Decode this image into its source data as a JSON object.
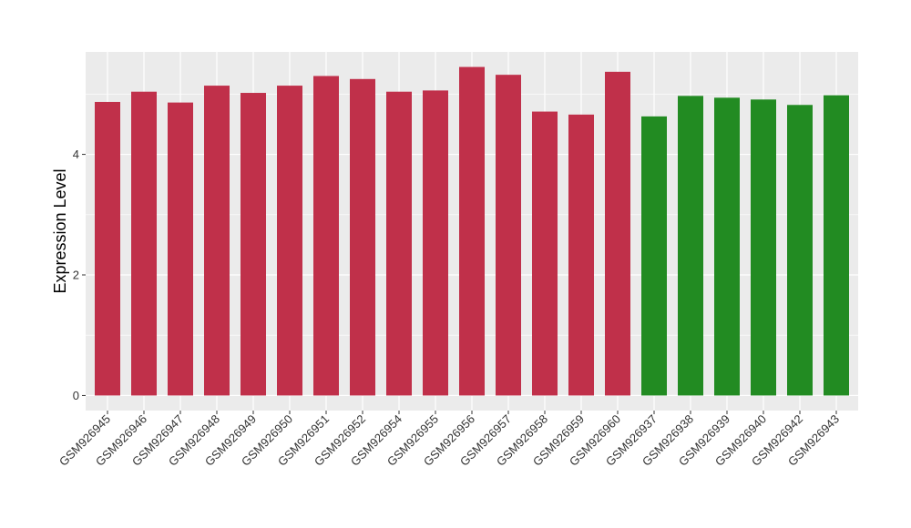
{
  "colors": {
    "panel_background": "#EBEBEB",
    "grid_major": "#FFFFFF",
    "group_a": "#C0304A",
    "group_b": "#228B22",
    "tick_text": "#333333"
  },
  "chart_data": {
    "type": "bar",
    "title": "",
    "xlabel": "",
    "ylabel": "Expression Level",
    "ylim": [
      -0.25,
      5.7
    ],
    "yticks": [
      0,
      2,
      4
    ],
    "grid": true,
    "legend": "none",
    "categories": [
      "GSM926945",
      "GSM926946",
      "GSM926947",
      "GSM926948",
      "GSM926949",
      "GSM926950",
      "GSM926951",
      "GSM926952",
      "GSM926954",
      "GSM926955",
      "GSM926956",
      "GSM926957",
      "GSM926958",
      "GSM926959",
      "GSM926960",
      "GSM926937",
      "GSM926938",
      "GSM926939",
      "GSM926940",
      "GSM926942",
      "GSM926943"
    ],
    "values": [
      4.87,
      5.04,
      4.86,
      5.14,
      5.02,
      5.14,
      5.3,
      5.25,
      5.04,
      5.06,
      5.45,
      5.32,
      4.71,
      4.66,
      5.37,
      4.63,
      4.97,
      4.94,
      4.91,
      4.82,
      4.98
    ],
    "bar_colors": [
      "#C0304A",
      "#C0304A",
      "#C0304A",
      "#C0304A",
      "#C0304A",
      "#C0304A",
      "#C0304A",
      "#C0304A",
      "#C0304A",
      "#C0304A",
      "#C0304A",
      "#C0304A",
      "#C0304A",
      "#C0304A",
      "#C0304A",
      "#228B22",
      "#228B22",
      "#228B22",
      "#228B22",
      "#228B22",
      "#228B22"
    ]
  }
}
